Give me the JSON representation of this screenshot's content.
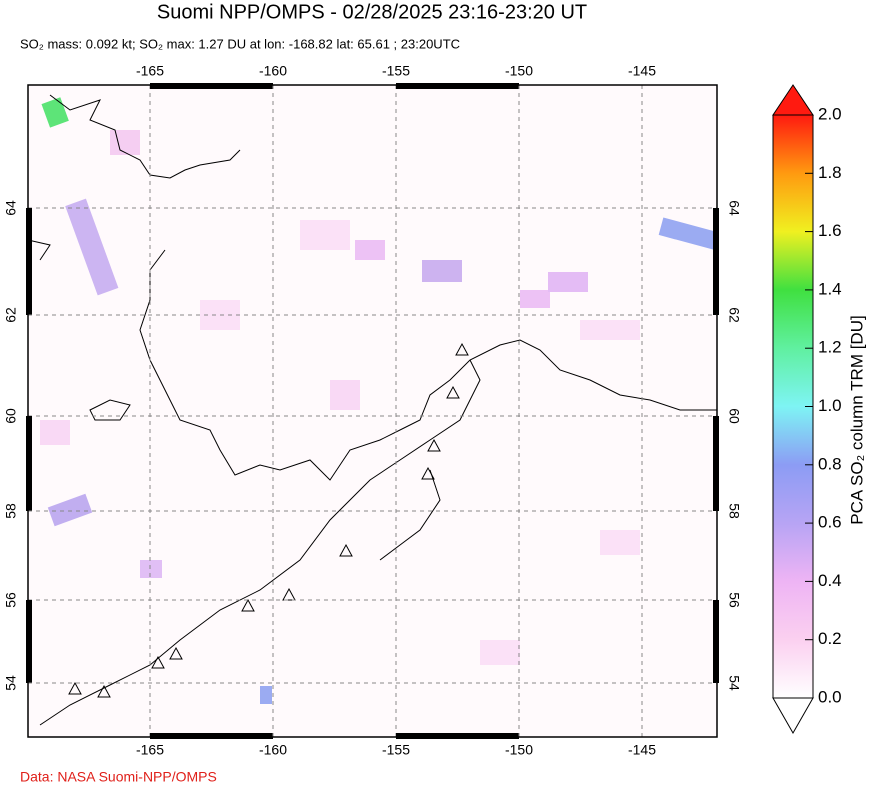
{
  "header": {
    "title": "Suomi NPP/OMPS - 02/28/2025 23:16-23:20 UT",
    "subtitle": "SO₂ mass: 0.092 kt; SO₂ max: 1.27 DU at lon: -168.82 lat: 65.61 ; 23:20UTC"
  },
  "map": {
    "lon_ticks": [
      -165,
      -160,
      -155,
      -150,
      -145
    ],
    "lat_ticks": [
      64,
      62,
      60,
      58,
      56,
      54
    ]
  },
  "colorbar": {
    "label": "PCA SO₂ column TRM [DU]",
    "lim": [
      0,
      2
    ],
    "ticks": [
      {
        "value": 0,
        "label": "0.0"
      },
      0.2,
      0.4,
      0.6,
      0.8,
      {
        "value": 1,
        "label": "1.0"
      },
      1.2,
      1.4,
      1.6,
      1.8,
      {
        "value": 2,
        "label": "2.0"
      }
    ]
  },
  "footer": {
    "credit": "Data: NASA Suomi-NPP/OMPS"
  }
}
